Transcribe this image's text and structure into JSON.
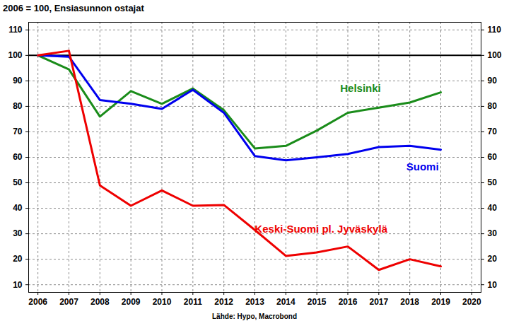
{
  "chart_data": {
    "type": "line",
    "title": "2006 = 100, Ensiasunnon ostajat",
    "caption": "Lähde: Hypo, Macrobond",
    "x": [
      2006,
      2007,
      2008,
      2009,
      2010,
      2011,
      2012,
      2013,
      2014,
      2015,
      2016,
      2017,
      2018,
      2019
    ],
    "series": [
      {
        "name": "Helsinki",
        "color": "#1a8c1a",
        "values": [
          100,
          94.5,
          76,
          86,
          81,
          87,
          78.5,
          63.5,
          64.5,
          70.5,
          77.5,
          79.5,
          81.5,
          85.5
        ]
      },
      {
        "name": "Suomi",
        "color": "#0000ee",
        "values": [
          100,
          99.5,
          82.5,
          81,
          79,
          86.5,
          77.5,
          60.5,
          58.8,
          60,
          61.3,
          64,
          64.5,
          63
        ]
      },
      {
        "name": "Keski-Suomi pl. Jyväskylä",
        "color": "#ee0000",
        "values": [
          100,
          101.8,
          49,
          41,
          47,
          41,
          41.3,
          31.5,
          21.3,
          22.7,
          25,
          15.8,
          20,
          17.2
        ]
      }
    ],
    "reference_line": 100,
    "xlim": [
      2005.7,
      2020.3
    ],
    "xticks": [
      2006,
      2007,
      2008,
      2009,
      2010,
      2011,
      2012,
      2013,
      2014,
      2015,
      2016,
      2017,
      2018,
      2019,
      2020
    ],
    "ylim": [
      7,
      113
    ],
    "yticks": [
      10,
      20,
      30,
      40,
      50,
      60,
      70,
      80,
      90,
      100,
      110
    ],
    "y2lim": [
      7,
      113
    ],
    "y2ticks": [
      10,
      20,
      30,
      40,
      50,
      60,
      70,
      80,
      90,
      100,
      110
    ],
    "grid": true
  }
}
